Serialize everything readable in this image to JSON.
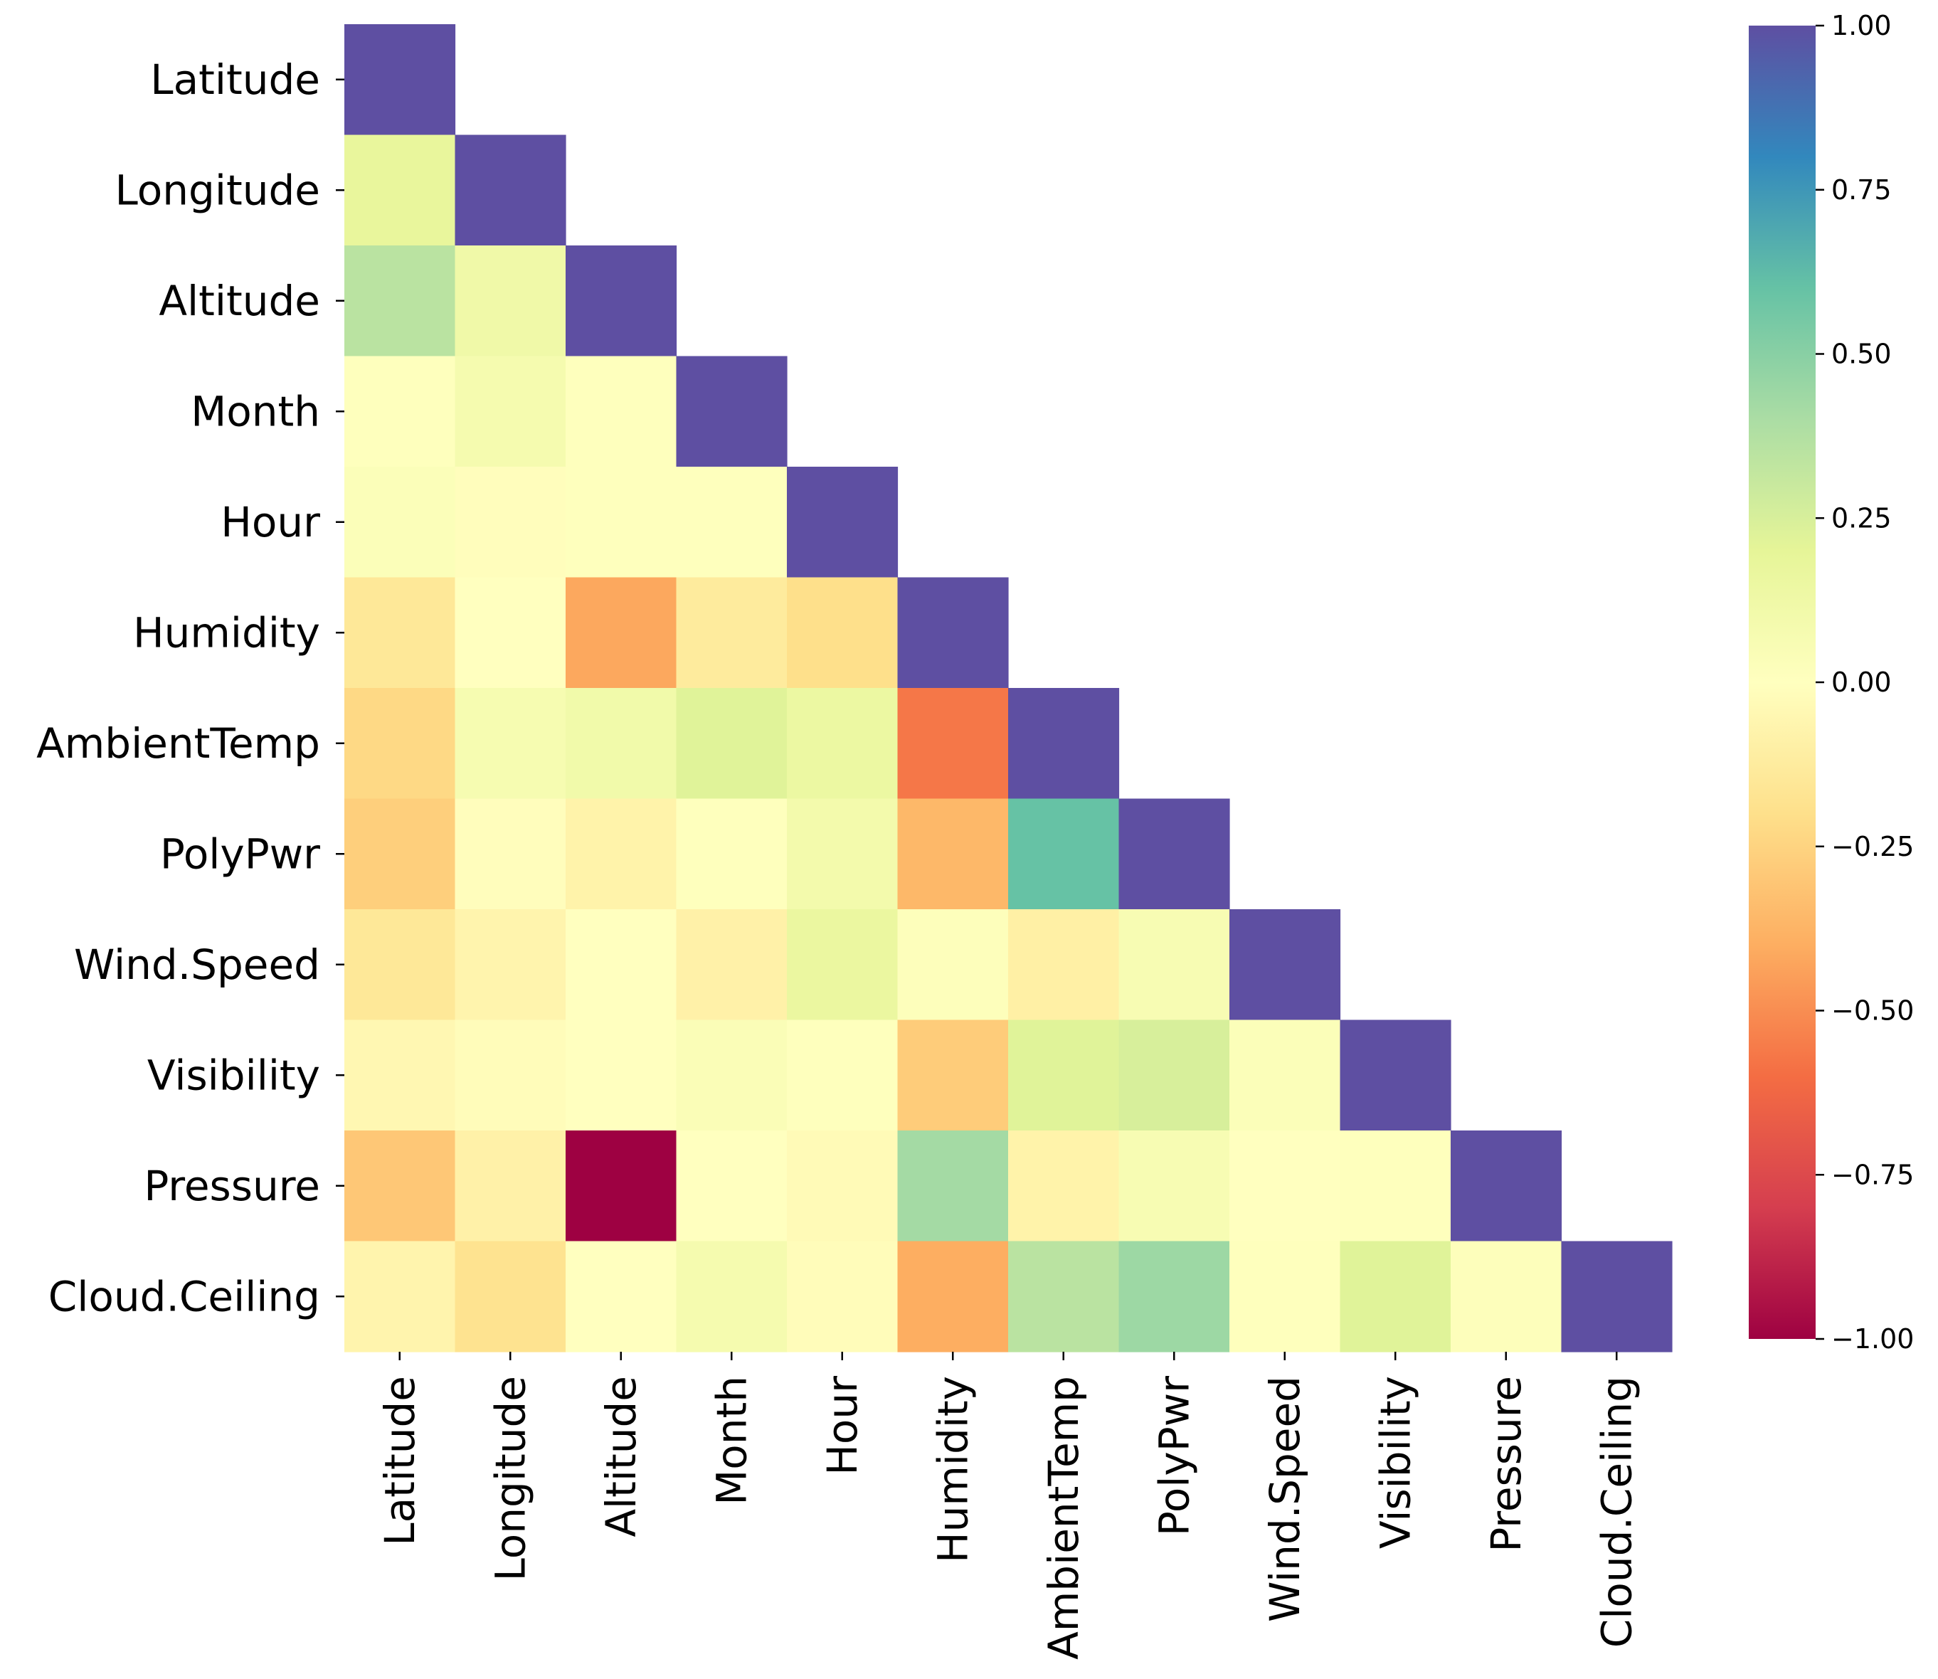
{
  "chart_data": {
    "type": "heatmap",
    "variant": "lower-triangle correlation matrix",
    "colormap": "Spectral",
    "variables": [
      "Latitude",
      "Longitude",
      "Altitude",
      "Month",
      "Hour",
      "Humidity",
      "AmbientTemp",
      "PolyPwr",
      "Wind.Speed",
      "Visibility",
      "Pressure",
      "Cloud.Ceiling"
    ],
    "matrix": [
      [
        1.0
      ],
      [
        0.18,
        1.0
      ],
      [
        0.35,
        0.12,
        1.0
      ],
      [
        0.01,
        0.08,
        0.01,
        1.0
      ],
      [
        0.03,
        -0.01,
        0.01,
        0.01,
        1.0
      ],
      [
        -0.15,
        0.0,
        -0.42,
        -0.13,
        -0.2,
        1.0
      ],
      [
        -0.23,
        0.07,
        0.11,
        0.22,
        0.15,
        -0.57,
        1.0
      ],
      [
        -0.27,
        -0.01,
        -0.08,
        0.01,
        0.1,
        -0.36,
        0.6,
        1.0
      ],
      [
        -0.15,
        -0.07,
        0.0,
        -0.09,
        0.16,
        0.02,
        -0.1,
        0.06,
        1.0
      ],
      [
        -0.05,
        -0.02,
        0.0,
        0.04,
        0.01,
        -0.28,
        0.22,
        0.25,
        0.03,
        1.0
      ],
      [
        -0.3,
        -0.09,
        -1.0,
        0.0,
        -0.03,
        0.42,
        -0.08,
        0.06,
        0.0,
        0.01,
        1.0
      ],
      [
        -0.07,
        -0.18,
        0.0,
        0.08,
        -0.02,
        -0.4,
        0.35,
        0.44,
        0.01,
        0.22,
        0.02,
        1.0
      ]
    ],
    "colorbar": {
      "min": -1.0,
      "max": 1.0,
      "ticks": [
        1.0,
        0.75,
        0.5,
        0.25,
        0.0,
        -0.25,
        -0.5,
        -0.75,
        -1.0
      ],
      "tick_labels": [
        "1.00",
        "0.75",
        "0.50",
        "0.25",
        "0.00",
        "−0.25",
        "−0.50",
        "−0.75",
        "−1.00"
      ]
    },
    "title": "",
    "xlabel": "",
    "ylabel": ""
  }
}
